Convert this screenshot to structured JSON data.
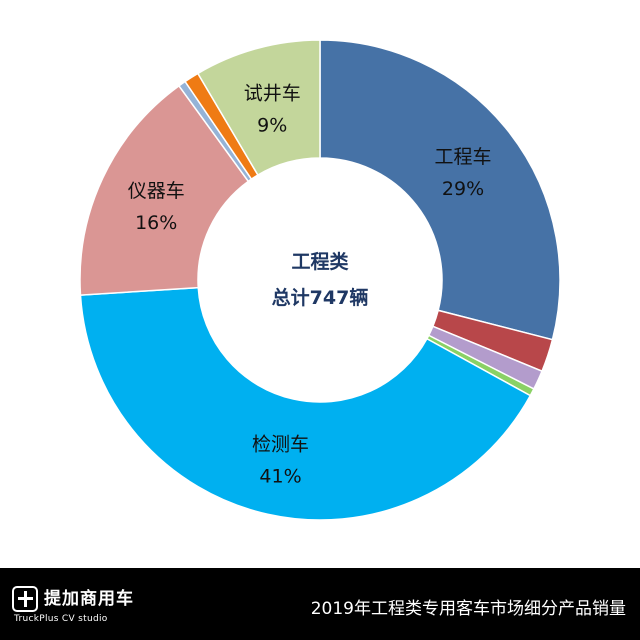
{
  "chart_data": {
    "type": "pie",
    "donut": true,
    "center_label_line1": "工程类",
    "center_label_line2": "总计747辆",
    "slices": [
      {
        "label": "工程车",
        "percent_label": "29%",
        "value": 29.0,
        "color": "#4672a6"
      },
      {
        "label": "",
        "percent_label": "",
        "value": 2.2,
        "color": "#b8474a"
      },
      {
        "label": "",
        "percent_label": "",
        "value": 1.3,
        "color": "#b39ccc"
      },
      {
        "label": "",
        "percent_label": "",
        "value": 0.5,
        "color": "#8ad165"
      },
      {
        "label": "检测车",
        "percent_label": "41%",
        "value": 41.0,
        "color": "#00b0f0"
      },
      {
        "label": "仪器车",
        "percent_label": "16%",
        "value": 16.0,
        "color": "#da9694"
      },
      {
        "label": "",
        "percent_label": "",
        "value": 0.5,
        "color": "#95b3d7"
      },
      {
        "label": "",
        "percent_label": "",
        "value": 1.0,
        "color": "#ef7b14"
      },
      {
        "label": "试井车",
        "percent_label": "9%",
        "value": 8.5,
        "color": "#c3d69b"
      }
    ]
  },
  "footer": {
    "brand_name": "提加商用车",
    "brand_sub": "TruckPlus CV studio",
    "caption": "2019年工程类专用客车市场细分产品销量"
  }
}
